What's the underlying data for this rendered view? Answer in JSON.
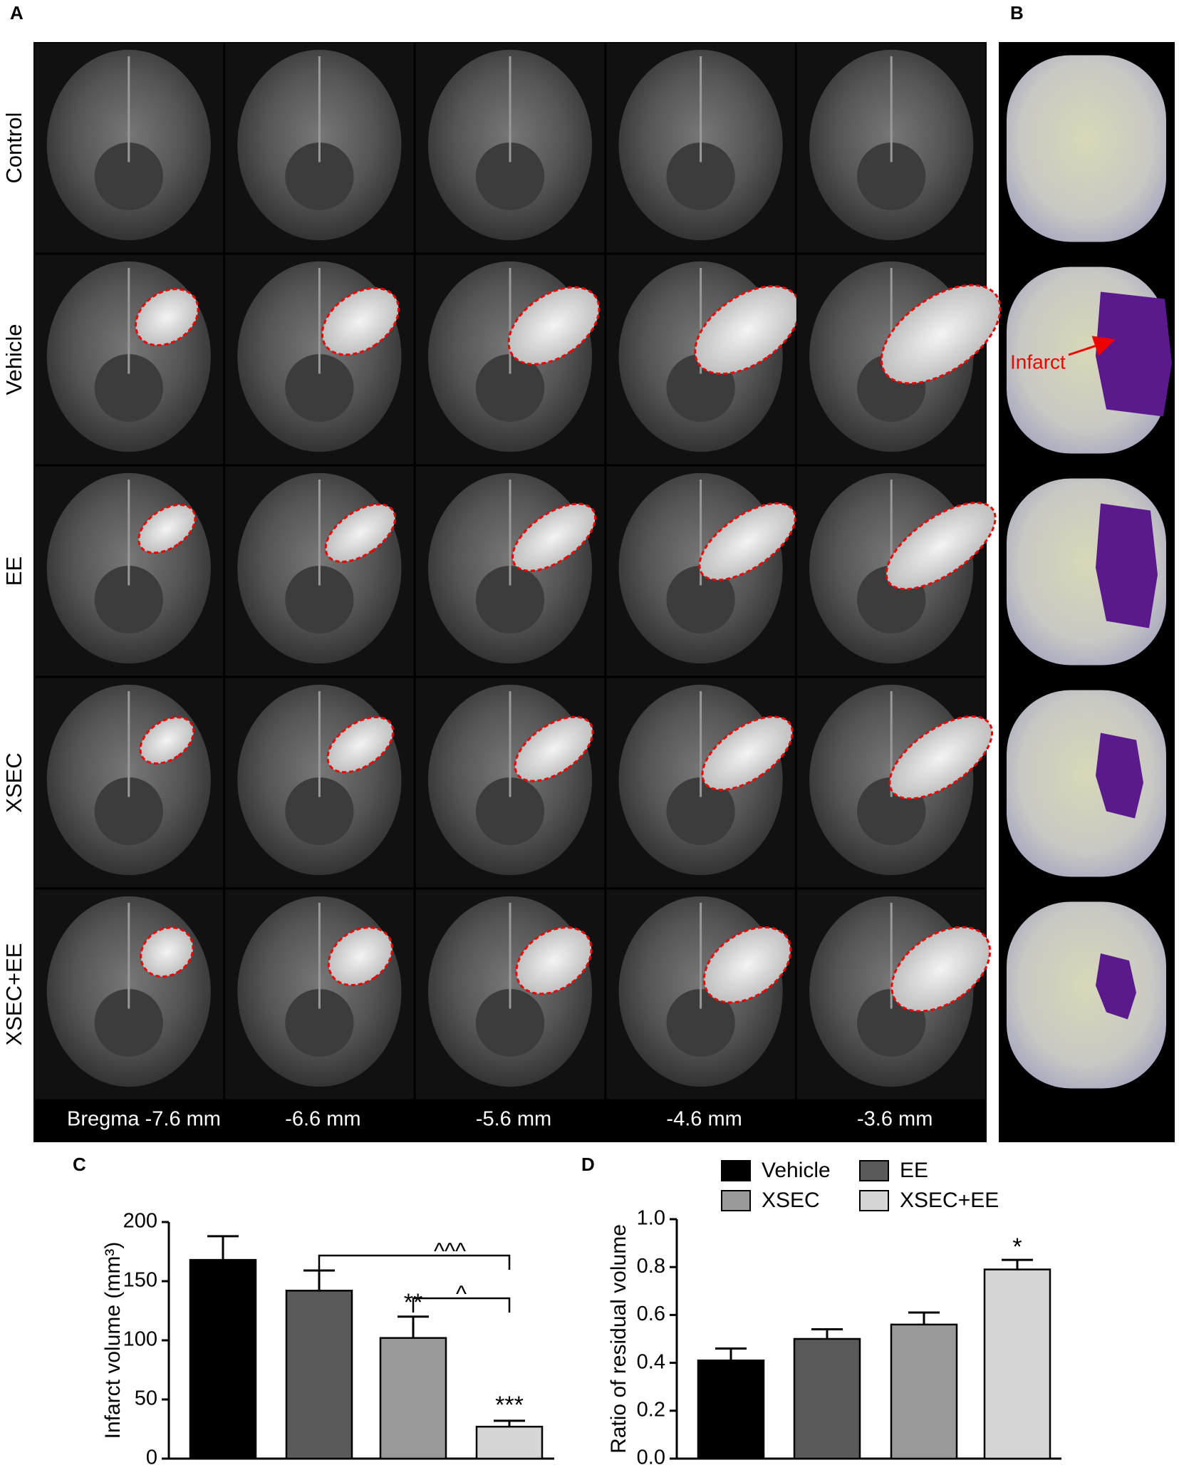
{
  "panel_labels": [
    "A",
    "B",
    "C",
    "D"
  ],
  "panel_a": {
    "row_labels": [
      "Control",
      "Vehicle",
      "EE",
      "XSEC",
      "XSEC+EE"
    ],
    "column_labels": [
      "Bregma -7.6 mm",
      "-6.6 mm",
      "-5.6 mm",
      "-4.6 mm",
      "-3.6 mm"
    ]
  },
  "panel_b": {
    "annotation": "Infarct"
  },
  "chart_data": [
    {
      "type": "bar",
      "y_label": "Infarct volume (mm³)",
      "categories": [
        null,
        null,
        null,
        null
      ],
      "values": [
        168,
        142,
        102,
        27
      ],
      "errors": [
        20,
        17,
        18,
        5
      ],
      "colors": [
        "#000000",
        "#5a5a5a",
        "#9a9a9a",
        "#d6d6d6"
      ],
      "ylim": [
        0,
        200
      ],
      "yticks": [
        0,
        50,
        100,
        150,
        200
      ],
      "annotations": [
        "**",
        "***",
        "^^^",
        "^"
      ]
    },
    {
      "type": "bar",
      "y_label": "Ratio of residual volume",
      "series": [
        {
          "name": "Vehicle",
          "color": "#000000",
          "values": [
            0.41
          ],
          "errors": [
            0.05
          ]
        },
        {
          "name": "EE",
          "color": "#5a5a5a",
          "values": [
            0.5
          ],
          "errors": [
            0.04
          ]
        },
        {
          "name": "XSEC",
          "color": "#9a9a9a",
          "values": [
            0.56
          ],
          "errors": [
            0.05
          ]
        },
        {
          "name": "XSEC+EE",
          "color": "#d6d6d6",
          "values": [
            0.79
          ],
          "errors": [
            0.04
          ]
        }
      ],
      "ylim": [
        0,
        1
      ],
      "yticks": [
        {
          "value": 0,
          "label": "0.0"
        },
        {
          "value": 0.2,
          "label": "0.2"
        },
        {
          "value": 0.4,
          "label": "0.4"
        },
        {
          "value": 0.6,
          "label": "0.6"
        },
        {
          "value": 0.8,
          "label": "0.8"
        },
        {
          "value": 1,
          "label": "1.0"
        }
      ],
      "annotations": [
        "*"
      ],
      "legend": "top"
    }
  ]
}
